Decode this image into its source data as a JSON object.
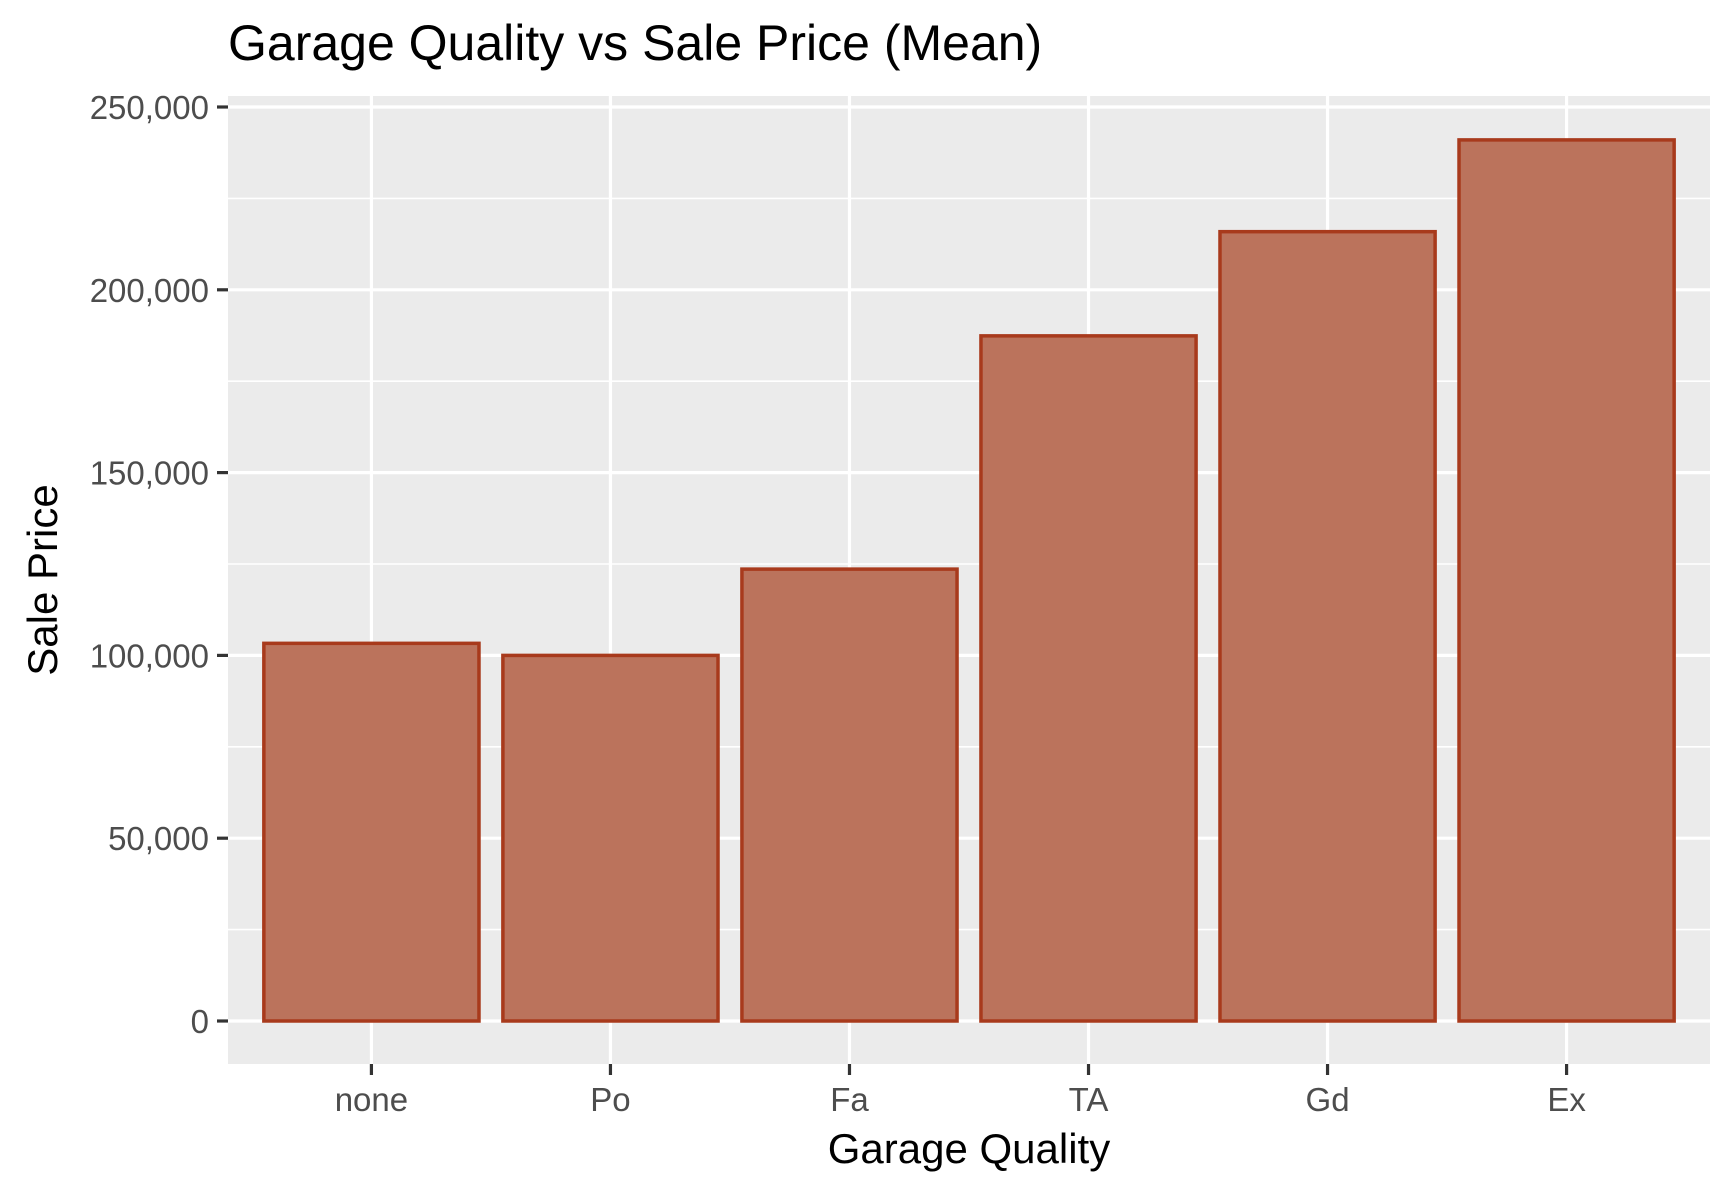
{
  "chart_data": {
    "type": "bar",
    "title": "Garage Quality vs Sale Price (Mean)",
    "xlabel": "Garage Quality",
    "ylabel": "Sale Price",
    "categories": [
      "none",
      "Po",
      "Fa",
      "TA",
      "Gd",
      "Ex"
    ],
    "values": [
      103300,
      100000,
      123600,
      187400,
      215900,
      241000
    ],
    "ylim": [
      0,
      250000
    ],
    "yticks": [
      0,
      50000,
      100000,
      150000,
      200000,
      250000
    ],
    "ytick_labels": [
      "0",
      "50,000",
      "100,000",
      "150,000",
      "200,000",
      "250,000"
    ],
    "grid": true,
    "legend": "none",
    "colors": {
      "bar_fill": "#bb735c",
      "bar_outline": "#a83a1c",
      "panel_background": "#ebebeb",
      "grid": "#ffffff"
    }
  }
}
